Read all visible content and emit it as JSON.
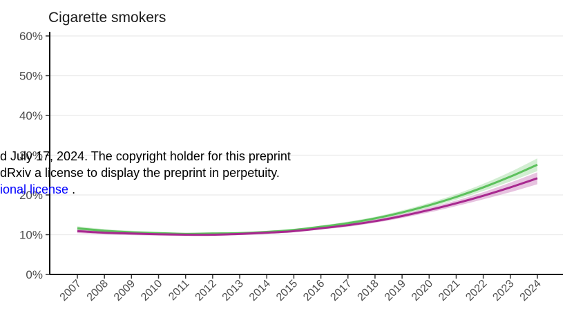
{
  "chart_data": {
    "type": "line",
    "title": "Cigarette smokers",
    "xlabel": "",
    "ylabel": "",
    "x": [
      2007,
      2008,
      2009,
      2010,
      2011,
      2012,
      2013,
      2014,
      2015,
      2016,
      2017,
      2018,
      2019,
      2020,
      2021,
      2022,
      2023,
      2024
    ],
    "x_tick_labels": [
      "2007",
      "2008",
      "2009",
      "2010",
      "2011",
      "2012",
      "2013",
      "2014",
      "2015",
      "2016",
      "2017",
      "2018",
      "2019",
      "2020",
      "2021",
      "2022",
      "2023",
      "2024"
    ],
    "y_tick_labels": [
      "0%",
      "10%",
      "20%",
      "30%",
      "40%",
      "50%",
      "60%"
    ],
    "ylim": [
      0,
      60
    ],
    "grid": true,
    "series": [
      {
        "color": "#5cc15c",
        "values": [
          11.6,
          11.0,
          10.6,
          10.4,
          10.2,
          10.3,
          10.4,
          10.7,
          11.2,
          12.0,
          12.9,
          14.1,
          15.6,
          17.4,
          19.5,
          21.9,
          24.6,
          27.6
        ],
        "ci_halfwidth": [
          0.5,
          0.4,
          0.4,
          0.3,
          0.3,
          0.3,
          0.3,
          0.3,
          0.3,
          0.3,
          0.4,
          0.4,
          0.5,
          0.6,
          0.7,
          0.9,
          1.2,
          1.6
        ]
      },
      {
        "color": "#a8288f",
        "values": [
          10.9,
          10.5,
          10.3,
          10.1,
          10.0,
          10.0,
          10.2,
          10.5,
          10.9,
          11.6,
          12.4,
          13.4,
          14.7,
          16.2,
          17.9,
          19.8,
          21.9,
          24.2
        ],
        "ci_halfwidth": [
          0.5,
          0.4,
          0.4,
          0.3,
          0.3,
          0.3,
          0.3,
          0.3,
          0.3,
          0.3,
          0.4,
          0.4,
          0.5,
          0.6,
          0.7,
          0.9,
          1.2,
          1.5
        ]
      }
    ]
  },
  "overlay": {
    "line1": "d July 17, 2024. The copyright holder for this preprint",
    "line2": "dRxiv a license to display the preprint in perpetuity.",
    "line3_link": "ional license",
    "line3_tail": " ."
  }
}
